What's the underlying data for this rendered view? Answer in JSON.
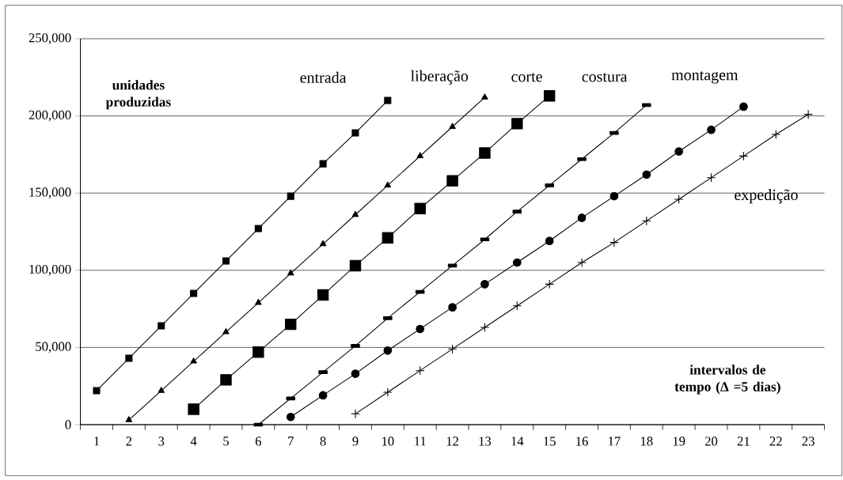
{
  "chart_data": {
    "type": "line",
    "xlabel": "intervalos de tempo (Δ =5 dias)",
    "ylabel": "unidades produzidas",
    "categories": [
      "1",
      "2",
      "3",
      "4",
      "5",
      "6",
      "7",
      "8",
      "9",
      "10",
      "11",
      "12",
      "13",
      "14",
      "15",
      "16",
      "17",
      "18",
      "19",
      "20",
      "21",
      "22",
      "23"
    ],
    "series": [
      {
        "name": "entrada",
        "color": "#000000",
        "marker": "square",
        "values": [
          22000,
          43000,
          64000,
          85000,
          106000,
          127000,
          148000,
          169000,
          189000,
          210000,
          null,
          null,
          null,
          null,
          null,
          null,
          null,
          null,
          null,
          null,
          null,
          null,
          null
        ]
      },
      {
        "name": "liberação",
        "color": "#000000",
        "marker": "triangle",
        "values": [
          null,
          3000,
          22000,
          41000,
          60000,
          79000,
          98000,
          117000,
          136000,
          155000,
          174000,
          193000,
          212000,
          null,
          null,
          null,
          null,
          null,
          null,
          null,
          null,
          null,
          null
        ]
      },
      {
        "name": "corte",
        "color": "#000000",
        "marker": "square",
        "values": [
          null,
          null,
          null,
          10000,
          29000,
          47000,
          65000,
          84000,
          103000,
          121000,
          140000,
          158000,
          176000,
          195000,
          213000,
          null,
          null,
          null,
          null,
          null,
          null,
          null,
          null
        ]
      },
      {
        "name": "costura",
        "color": "#000000",
        "marker": "square",
        "values": [
          null,
          null,
          null,
          null,
          null,
          0,
          17000,
          34000,
          51000,
          69000,
          86000,
          103000,
          120000,
          138000,
          155000,
          172000,
          189000,
          207000,
          null,
          null,
          null,
          null,
          null
        ]
      },
      {
        "name": "montagem",
        "color": "#000000",
        "marker": "circle",
        "values": [
          null,
          null,
          null,
          null,
          null,
          null,
          5000,
          19000,
          33000,
          48000,
          62000,
          76000,
          91000,
          105000,
          119000,
          134000,
          148000,
          162000,
          177000,
          191000,
          206000,
          null,
          null
        ]
      },
      {
        "name": "expedição",
        "color": "#000000",
        "marker": "cross",
        "values": [
          null,
          null,
          null,
          null,
          null,
          null,
          null,
          null,
          7000,
          21000,
          35000,
          49000,
          63000,
          77000,
          91000,
          105000,
          118000,
          132000,
          146000,
          160000,
          174000,
          188000,
          201000
        ]
      }
    ],
    "ylim": [
      0,
      250000
    ],
    "yticks": [
      {
        "value": 0,
        "label": "0"
      },
      {
        "value": 50000,
        "label": "50,000"
      },
      {
        "value": 100000,
        "label": "100,000"
      },
      {
        "value": 150000,
        "label": "150,000"
      },
      {
        "value": 200000,
        "label": "200,000"
      },
      {
        "value": 250000,
        "label": "250,000"
      }
    ],
    "grid": "y",
    "line_style": "solid"
  }
}
